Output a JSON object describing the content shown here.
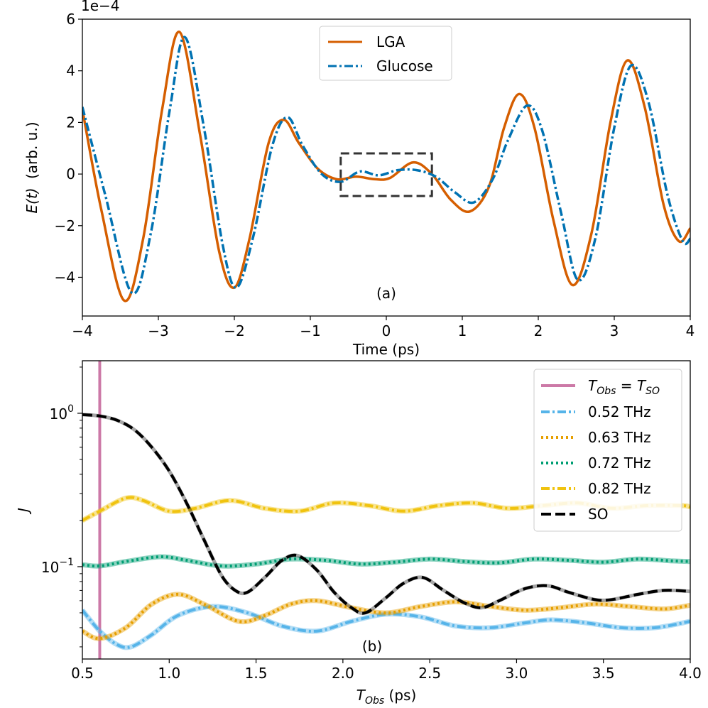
{
  "chart_data": [
    {
      "type": "line",
      "panel_label": "(a)",
      "xlabel": "Time (ps)",
      "ylabel_main": "E(t)",
      "ylabel_suffix": "(arb. u.)",
      "offset_text": "1e−4",
      "xlim": [
        -4,
        4
      ],
      "ylim": [
        -5.5,
        6
      ],
      "xticks": [
        -4,
        -3,
        -2,
        -1,
        0,
        1,
        2,
        3,
        4
      ],
      "xtick_labels": [
        "−4",
        "−3",
        "−2",
        "−1",
        "0",
        "1",
        "2",
        "3",
        "4"
      ],
      "yticks": [
        -4,
        -2,
        0,
        2,
        4,
        6
      ],
      "ytick_labels": [
        "−4",
        "−2",
        "0",
        "2",
        "4",
        "6"
      ],
      "legend_position": "top-center",
      "annotation": "dashed box around t = -0.6 to 0.6 ps",
      "box": {
        "x0": -0.6,
        "x1": 0.6,
        "y0": -0.85,
        "y1": 0.8
      },
      "series": [
        {
          "name": "LGA",
          "color": "#d55e00",
          "style": "solid",
          "x": [
            -4.0,
            -3.75,
            -3.45,
            -3.2,
            -2.95,
            -2.72,
            -2.45,
            -2.2,
            -2.0,
            -1.8,
            -1.55,
            -1.35,
            -1.15,
            -0.9,
            -0.65,
            -0.4,
            -0.15,
            0.05,
            0.35,
            0.6,
            0.85,
            1.1,
            1.35,
            1.55,
            1.75,
            1.95,
            2.2,
            2.45,
            2.7,
            2.95,
            3.17,
            3.4,
            3.65,
            3.85,
            4.0
          ],
          "y": [
            2.5,
            -1.4,
            -4.9,
            -2.5,
            2.5,
            5.5,
            1.5,
            -3.0,
            -4.4,
            -2.5,
            1.2,
            2.1,
            1.2,
            0.2,
            -0.2,
            -0.1,
            -0.2,
            -0.15,
            0.45,
            0.0,
            -1.0,
            -1.45,
            -0.5,
            1.8,
            3.1,
            1.8,
            -1.8,
            -4.3,
            -2.3,
            2.0,
            4.4,
            2.6,
            -1.2,
            -2.6,
            -2.1
          ]
        },
        {
          "name": "Glucose",
          "color": "#0072b2",
          "style": "dashdot",
          "x": [
            -4.0,
            -3.7,
            -3.35,
            -3.1,
            -2.85,
            -2.65,
            -2.4,
            -2.15,
            -1.97,
            -1.75,
            -1.5,
            -1.3,
            -1.1,
            -0.85,
            -0.6,
            -0.35,
            -0.1,
            0.15,
            0.4,
            0.65,
            0.9,
            1.15,
            1.4,
            1.6,
            1.85,
            2.05,
            2.3,
            2.52,
            2.75,
            3.0,
            3.22,
            3.45,
            3.7,
            3.9,
            4.0
          ],
          "y": [
            2.6,
            -0.8,
            -4.6,
            -2.3,
            2.5,
            5.3,
            1.8,
            -2.8,
            -4.4,
            -2.4,
            1.1,
            2.2,
            1.1,
            0.0,
            -0.3,
            0.1,
            -0.05,
            0.15,
            0.15,
            -0.1,
            -0.7,
            -1.1,
            -0.2,
            1.3,
            2.65,
            1.7,
            -1.5,
            -4.1,
            -2.5,
            1.8,
            4.2,
            2.8,
            -0.8,
            -2.6,
            -2.5
          ]
        }
      ]
    },
    {
      "type": "line",
      "panel_label": "(b)",
      "xlabel_main": "T",
      "xlabel_sub": "Obs",
      "xlabel_suffix": " (ps)",
      "ylabel": "J",
      "yscale": "log",
      "xlim": [
        0.5,
        4.0
      ],
      "ylim": [
        0.025,
        2.2
      ],
      "xticks": [
        0.5,
        1.0,
        1.5,
        2.0,
        2.5,
        3.0,
        3.5,
        4.0
      ],
      "xtick_labels": [
        "0.5",
        "1.0",
        "1.5",
        "2.0",
        "2.5",
        "3.0",
        "3.5",
        "4.0"
      ],
      "yticks": [
        0.1,
        1.0
      ],
      "ytick_base": "10",
      "ytick_exponents": [
        "−1",
        "0"
      ],
      "vline": {
        "x": 0.6,
        "color": "#cc79a7"
      },
      "legend_position": "top-right",
      "legend_vline": {
        "T": "T",
        "sub1": "Obs",
        "eq": " = ",
        "sub2": "SO"
      },
      "series": [
        {
          "name": "0.52 THz",
          "color": "#56b4e9",
          "style": "dashdot",
          "x": [
            0.5,
            0.6,
            0.7,
            0.78,
            0.9,
            1.05,
            1.25,
            1.45,
            1.65,
            1.85,
            2.05,
            2.25,
            2.45,
            2.65,
            2.85,
            3.05,
            3.2,
            3.4,
            3.6,
            3.8,
            4.0
          ],
          "y": [
            0.052,
            0.038,
            0.031,
            0.03,
            0.036,
            0.048,
            0.055,
            0.05,
            0.041,
            0.038,
            0.044,
            0.049,
            0.047,
            0.041,
            0.04,
            0.043,
            0.045,
            0.043,
            0.04,
            0.04,
            0.044
          ]
        },
        {
          "name": "0.63 THz",
          "color": "#e69f00",
          "style": "dotted",
          "x": [
            0.5,
            0.6,
            0.75,
            0.9,
            1.05,
            1.2,
            1.4,
            1.55,
            1.7,
            1.85,
            2.05,
            2.25,
            2.45,
            2.65,
            2.85,
            3.05,
            3.25,
            3.45,
            3.65,
            3.85,
            4.0
          ],
          "y": [
            0.038,
            0.034,
            0.04,
            0.057,
            0.066,
            0.057,
            0.044,
            0.048,
            0.057,
            0.06,
            0.054,
            0.05,
            0.055,
            0.059,
            0.055,
            0.052,
            0.054,
            0.057,
            0.055,
            0.053,
            0.056
          ]
        },
        {
          "name": "0.72 THz",
          "color": "#009e73",
          "style": "dotted",
          "x": [
            0.5,
            0.6,
            0.75,
            0.95,
            1.1,
            1.3,
            1.5,
            1.7,
            1.9,
            2.1,
            2.3,
            2.5,
            2.7,
            2.9,
            3.1,
            3.3,
            3.5,
            3.7,
            3.9,
            4.0
          ],
          "y": [
            0.103,
            0.101,
            0.108,
            0.116,
            0.11,
            0.101,
            0.104,
            0.112,
            0.11,
            0.104,
            0.107,
            0.112,
            0.108,
            0.106,
            0.112,
            0.11,
            0.107,
            0.112,
            0.109,
            0.108
          ]
        },
        {
          "name": "0.82 THz",
          "color": "#f0c30f",
          "style": "dashdot",
          "x": [
            0.5,
            0.6,
            0.75,
            0.85,
            1.0,
            1.15,
            1.35,
            1.55,
            1.75,
            1.95,
            2.15,
            2.35,
            2.55,
            2.75,
            2.95,
            3.15,
            3.35,
            3.55,
            3.75,
            3.95,
            4.0
          ],
          "y": [
            0.2,
            0.23,
            0.28,
            0.27,
            0.23,
            0.24,
            0.27,
            0.24,
            0.23,
            0.26,
            0.25,
            0.23,
            0.25,
            0.26,
            0.24,
            0.25,
            0.26,
            0.24,
            0.25,
            0.25,
            0.245
          ]
        },
        {
          "name": "SO",
          "color": "#000000",
          "style": "dashed",
          "x": [
            0.5,
            0.6,
            0.7,
            0.8,
            0.9,
            1.0,
            1.1,
            1.2,
            1.3,
            1.38,
            1.45,
            1.55,
            1.65,
            1.74,
            1.85,
            1.95,
            2.05,
            2.13,
            2.25,
            2.35,
            2.46,
            2.58,
            2.7,
            2.8,
            2.9,
            3.05,
            3.18,
            3.3,
            3.45,
            3.55,
            3.7,
            3.85,
            4.0
          ],
          "y": [
            0.98,
            0.96,
            0.9,
            0.78,
            0.6,
            0.42,
            0.26,
            0.15,
            0.088,
            0.07,
            0.068,
            0.085,
            0.11,
            0.118,
            0.095,
            0.068,
            0.054,
            0.05,
            0.063,
            0.078,
            0.085,
            0.07,
            0.058,
            0.054,
            0.06,
            0.072,
            0.075,
            0.068,
            0.061,
            0.061,
            0.066,
            0.07,
            0.069
          ]
        }
      ]
    }
  ]
}
